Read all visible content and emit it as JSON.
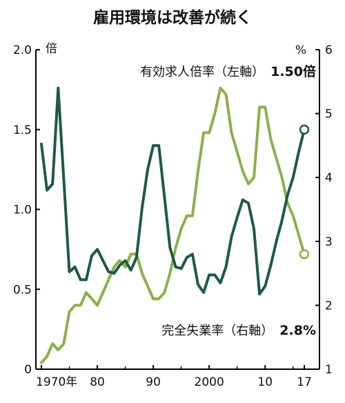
{
  "title": "雇用環境は改善が続く",
  "chart_data": {
    "type": "line",
    "title": "雇用環境は改善が続く",
    "left_axis": {
      "unit": "倍",
      "range": [
        0,
        2.0
      ],
      "ticks": [
        "0",
        "0.5",
        "1.0",
        "1.5",
        "2.0"
      ],
      "tick_values": [
        0,
        0.5,
        1.0,
        1.5,
        2.0
      ]
    },
    "right_axis": {
      "unit": "%",
      "range": [
        1,
        6
      ],
      "ticks": [
        "1",
        "2",
        "3",
        "4",
        "5",
        "6"
      ],
      "tick_values": [
        1,
        2,
        3,
        4,
        5,
        6
      ]
    },
    "x_axis": {
      "range": [
        1970,
        2017
      ],
      "tick_labels": [
        "1970年",
        "80",
        "90",
        "2000",
        "10",
        "17"
      ],
      "tick_years": [
        1970,
        1980,
        1990,
        2000,
        2010,
        2017
      ]
    },
    "grid": false,
    "series": [
      {
        "name": "有効求人倍率（左軸）",
        "latest_label": "1.50倍",
        "axis": "left",
        "color": "#1d5a45",
        "x": [
          1970,
          1971,
          1972,
          1973,
          1974,
          1975,
          1976,
          1977,
          1978,
          1979,
          1980,
          1981,
          1982,
          1983,
          1984,
          1985,
          1986,
          1987,
          1988,
          1989,
          1990,
          1991,
          1992,
          1993,
          1994,
          1995,
          1996,
          1997,
          1998,
          1999,
          2000,
          2001,
          2002,
          2003,
          2004,
          2005,
          2006,
          2007,
          2008,
          2009,
          2010,
          2011,
          2012,
          2013,
          2014,
          2015,
          2016,
          2017
        ],
        "values": [
          1.41,
          1.12,
          1.16,
          1.76,
          1.19,
          0.61,
          0.64,
          0.56,
          0.56,
          0.71,
          0.75,
          0.68,
          0.61,
          0.6,
          0.65,
          0.68,
          0.62,
          0.7,
          1.01,
          1.25,
          1.4,
          1.4,
          1.08,
          0.76,
          0.64,
          0.63,
          0.7,
          0.72,
          0.53,
          0.48,
          0.59,
          0.59,
          0.54,
          0.64,
          0.83,
          0.95,
          1.06,
          1.04,
          0.88,
          0.47,
          0.52,
          0.65,
          0.8,
          0.93,
          1.09,
          1.2,
          1.36,
          1.5
        ]
      },
      {
        "name": "完全失業率（右軸）",
        "latest_label": "2.8%",
        "axis": "right",
        "color": "#8cb04a",
        "x": [
          1970,
          1971,
          1972,
          1973,
          1974,
          1975,
          1976,
          1977,
          1978,
          1979,
          1980,
          1981,
          1982,
          1983,
          1984,
          1985,
          1986,
          1987,
          1988,
          1989,
          1990,
          1991,
          1992,
          1993,
          1994,
          1995,
          1996,
          1997,
          1998,
          1999,
          2000,
          2001,
          2002,
          2003,
          2004,
          2005,
          2006,
          2007,
          2008,
          2009,
          2010,
          2011,
          2012,
          2013,
          2014,
          2015,
          2016,
          2017
        ],
        "values": [
          1.1,
          1.2,
          1.4,
          1.3,
          1.4,
          1.9,
          2.0,
          2.0,
          2.2,
          2.1,
          2.0,
          2.2,
          2.4,
          2.6,
          2.7,
          2.6,
          2.8,
          2.8,
          2.5,
          2.3,
          2.1,
          2.1,
          2.2,
          2.5,
          2.9,
          3.2,
          3.4,
          3.4,
          4.1,
          4.7,
          4.7,
          5.0,
          5.4,
          5.3,
          4.7,
          4.4,
          4.1,
          3.9,
          4.0,
          5.1,
          5.1,
          4.6,
          4.3,
          4.0,
          3.6,
          3.4,
          3.1,
          2.8
        ]
      }
    ]
  }
}
